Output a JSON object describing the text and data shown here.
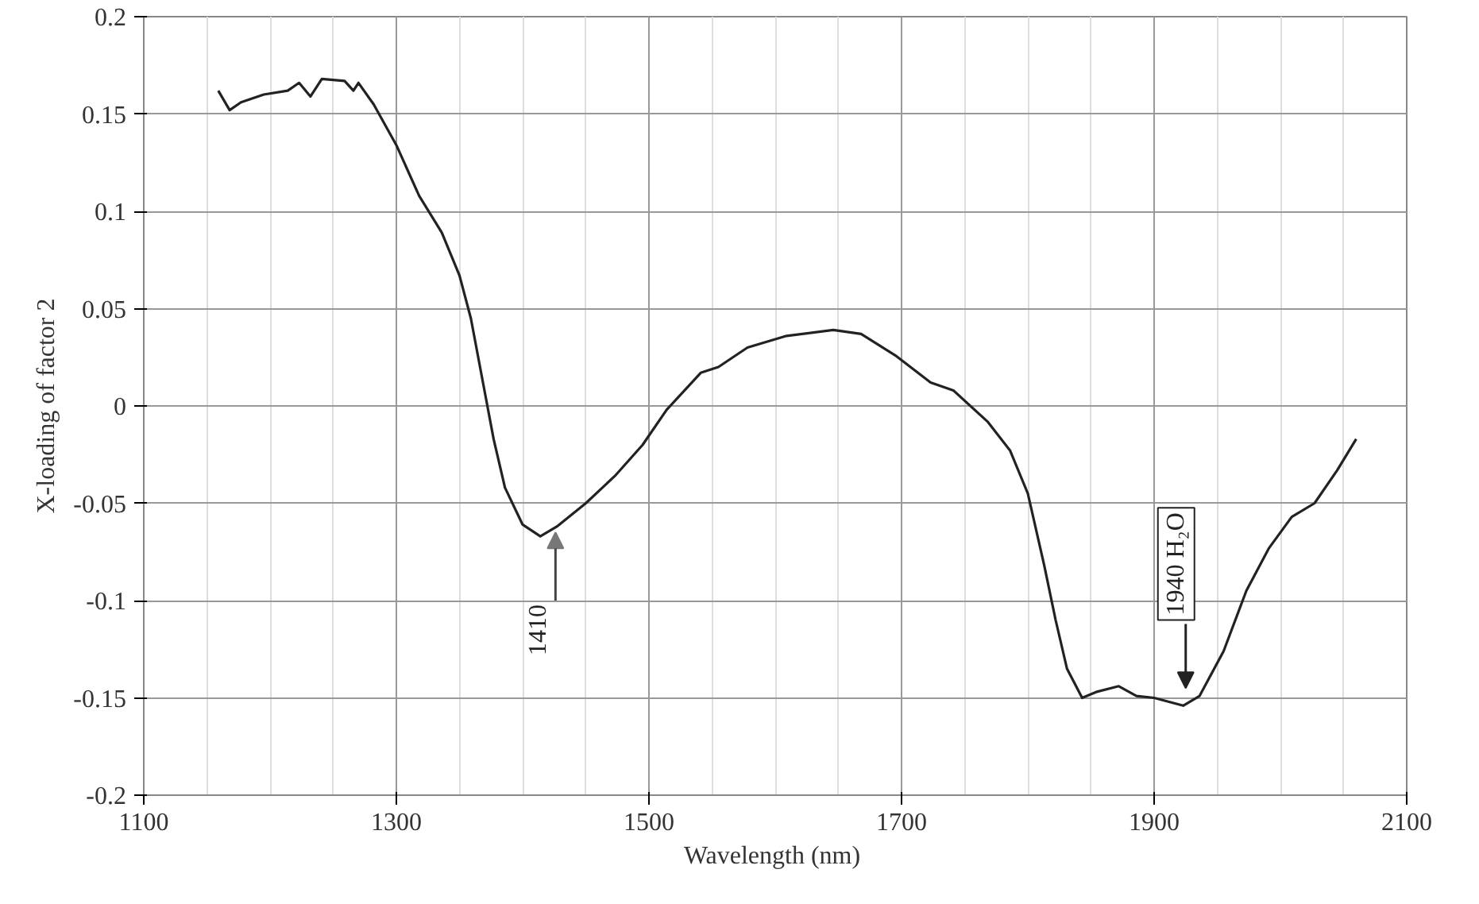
{
  "chart_data": {
    "type": "line",
    "xlabel": "Wavelength  (nm)",
    "ylabel": "X-loading of factor 2",
    "xlim": [
      1100,
      2100
    ],
    "xticks": [
      1100,
      1300,
      1500,
      1700,
      1900,
      2100
    ],
    "ylim": [
      -0.2,
      0.2
    ],
    "yticks": [
      {
        "value": -0.2,
        "label": "-0.2"
      },
      {
        "value": -0.15,
        "label": "-0.15"
      },
      {
        "value": -0.1,
        "label": "-0.1"
      },
      {
        "value": -0.05,
        "label": "-0.05"
      },
      {
        "value": 0,
        "label": "0"
      },
      {
        "value": 0.05,
        "label": "0.05"
      },
      {
        "value": 0.1,
        "label": "0.1"
      },
      {
        "value": 0.15,
        "label": "0.15"
      },
      {
        "value": 0.2,
        "label": "0.2"
      }
    ],
    "grid": true,
    "marker": "none",
    "line_style": "solid",
    "series": [
      {
        "color": "#222222",
        "x": [
          1159,
          1168,
          1177,
          1195,
          1214,
          1223,
          1232,
          1241,
          1259,
          1266,
          1270,
          1282,
          1300,
          1318,
          1336,
          1350,
          1359,
          1368,
          1377,
          1386,
          1400,
          1414,
          1427,
          1450,
          1473,
          1495,
          1514,
          1541,
          1555,
          1578,
          1609,
          1646,
          1668,
          1695,
          1723,
          1741,
          1768,
          1786,
          1800,
          1813,
          1822,
          1831,
          1843,
          1854,
          1872,
          1886,
          1900,
          1923,
          1936,
          1955,
          1973,
          1991,
          2009,
          2027,
          2045,
          2060
        ],
        "values": [
          0.162,
          0.152,
          0.156,
          0.16,
          0.162,
          0.166,
          0.159,
          0.168,
          0.167,
          0.162,
          0.166,
          0.155,
          0.134,
          0.108,
          0.089,
          0.067,
          0.045,
          0.014,
          -0.017,
          -0.042,
          -0.061,
          -0.067,
          -0.062,
          -0.05,
          -0.036,
          -0.02,
          -0.002,
          0.017,
          0.02,
          0.03,
          0.036,
          0.039,
          0.037,
          0.026,
          0.012,
          0.008,
          -0.008,
          -0.023,
          -0.045,
          -0.082,
          -0.11,
          -0.135,
          -0.15,
          -0.147,
          -0.144,
          -0.149,
          -0.15,
          -0.154,
          -0.149,
          -0.126,
          -0.095,
          -0.073,
          -0.057,
          -0.05,
          -0.033,
          -0.017
        ]
      }
    ],
    "annotations": [
      {
        "text": "1410",
        "x": 1426,
        "y": -0.065
      },
      {
        "text": "1940 H₂O",
        "x": 1925,
        "y": -0.152
      }
    ]
  }
}
